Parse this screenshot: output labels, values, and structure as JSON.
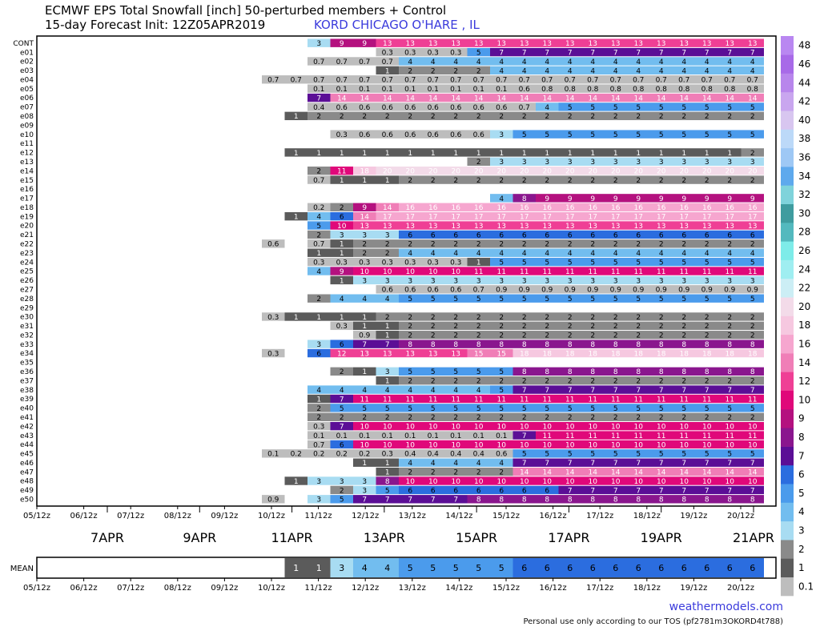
{
  "header": {
    "title_line1": "ECMWF EPS Total Snowfall [inch]  50-perturbed members + Control",
    "title_line2": "15-day Forecast Init: 12Z05APR2019",
    "station": "KORD CHICAGO O'HARE , IL"
  },
  "footer": {
    "brand": "weathermodels.com",
    "tos": "Personal use only according to our TOS (pf2781m3OKORD4t788)"
  },
  "chart_data": {
    "type": "heatmap",
    "title": "ECMWF EPS Total Snowfall [inch]  50-perturbed members + Control",
    "subtitle": "15-day Forecast Init: 12Z05APR2019",
    "x_time_labels": [
      "05/12z",
      "06/12z",
      "07/12z",
      "08/12z",
      "09/12z",
      "10/12z",
      "11/12z",
      "12/12z",
      "13/12z",
      "14/12z",
      "15/12z",
      "16/12z",
      "17/12z",
      "18/12z",
      "19/12z",
      "20/12z"
    ],
    "x_date_labels": [
      "7APR",
      "9APR",
      "11APR",
      "13APR",
      "15APR",
      "17APR",
      "19APR",
      "21APR"
    ],
    "members": [
      "CONT",
      "e01",
      "e02",
      "e03",
      "e04",
      "e05",
      "e06",
      "e07",
      "e08",
      "e09",
      "e10",
      "e11",
      "e12",
      "e13",
      "e14",
      "e15",
      "e16",
      "e17",
      "e18",
      "e19",
      "e20",
      "e21",
      "e22",
      "e23",
      "e24",
      "e25",
      "e26",
      "e27",
      "e28",
      "e29",
      "e30",
      "e31",
      "e32",
      "e33",
      "e34",
      "e35",
      "e36",
      "e37",
      "e38",
      "e39",
      "e40",
      "e41",
      "e42",
      "e43",
      "e44",
      "e45",
      "e46",
      "e47",
      "e48",
      "e49",
      "e50"
    ],
    "rows": {
      "CONT": [
        0,
        0,
        3,
        9,
        9,
        13,
        13,
        13,
        13,
        13,
        13,
        13,
        13,
        13,
        13,
        13,
        13,
        13,
        13,
        13,
        13,
        13
      ],
      "e01": [
        0,
        0,
        0,
        0,
        0,
        0.3,
        0.3,
        0.3,
        0.3,
        5,
        7,
        7,
        7,
        7,
        7,
        7,
        7,
        7,
        7,
        7,
        7,
        7
      ],
      "e02": [
        0,
        0,
        0.7,
        0.7,
        0.7,
        0.7,
        4,
        4,
        4,
        4,
        4,
        4,
        4,
        4,
        4,
        4,
        4,
        4,
        4,
        4,
        4,
        4
      ],
      "e03": [
        0,
        0,
        0,
        0,
        0,
        1,
        2,
        2,
        2,
        2,
        4,
        4,
        4,
        4,
        4,
        4,
        4,
        4,
        4,
        4,
        4,
        4
      ],
      "e04": [
        0.7,
        0.7,
        0.7,
        0.7,
        0.7,
        0.7,
        0.7,
        0.7,
        0.7,
        0.7,
        0.7,
        0.7,
        0.7,
        0.7,
        0.7,
        0.7,
        0.7,
        0.7,
        0.7,
        0.7,
        0.7,
        0.7
      ],
      "e05": [
        0,
        0,
        0.1,
        0.1,
        0.1,
        0.1,
        0.1,
        0.1,
        0.1,
        0.1,
        0.1,
        0.6,
        0.8,
        0.8,
        0.8,
        0.8,
        0.8,
        0.8,
        0.8,
        0.8,
        0.8,
        0.8
      ],
      "e06": [
        0,
        0,
        7,
        14,
        14,
        14,
        14,
        14,
        14,
        14,
        14,
        14,
        14,
        14,
        14,
        14,
        14,
        14,
        14,
        14,
        14,
        14
      ],
      "e07": [
        0,
        0,
        0.4,
        0.6,
        0.6,
        0.6,
        0.6,
        0.6,
        0.6,
        0.6,
        0.6,
        0.7,
        4,
        5,
        5,
        5,
        5,
        5,
        5,
        5,
        5,
        5
      ],
      "e08": [
        0,
        1,
        2,
        2,
        2,
        2,
        2,
        2,
        2,
        2,
        2,
        2,
        2,
        2,
        2,
        2,
        2,
        2,
        2,
        2,
        2,
        2
      ],
      "e09": [
        0,
        0,
        0,
        0,
        0,
        0,
        0,
        0,
        0,
        0,
        0,
        0,
        0,
        0,
        0,
        0,
        0,
        0,
        0,
        0,
        0,
        0
      ],
      "e10": [
        0,
        0,
        0,
        0.3,
        0.6,
        0.6,
        0.6,
        0.6,
        0.6,
        0.6,
        3,
        5,
        5,
        5,
        5,
        5,
        5,
        5,
        5,
        5,
        5,
        5
      ],
      "e11": [
        0,
        0,
        0,
        0,
        0,
        0,
        0,
        0,
        0,
        0,
        0,
        0,
        0,
        0,
        0,
        0,
        0,
        0,
        0,
        0,
        0,
        0
      ],
      "e12": [
        0,
        1,
        1,
        1,
        1,
        1,
        1,
        1,
        1,
        1,
        1,
        1,
        1,
        1,
        1,
        1,
        1,
        1,
        1,
        1,
        1,
        2
      ],
      "e13": [
        0,
        0,
        0,
        0,
        0,
        0,
        0,
        0,
        0,
        2,
        3,
        3,
        3,
        3,
        3,
        3,
        3,
        3,
        3,
        3,
        3,
        3
      ],
      "e14": [
        0,
        0,
        2,
        11,
        18,
        20,
        20,
        20,
        20,
        20,
        20,
        20,
        20,
        20,
        20,
        20,
        20,
        20,
        20,
        20,
        20,
        20
      ],
      "e15": [
        0,
        0,
        0.7,
        1,
        1,
        1,
        2,
        2,
        2,
        2,
        2,
        2,
        2,
        2,
        2,
        2,
        2,
        2,
        2,
        2,
        2,
        2
      ],
      "e16": [
        0,
        0,
        0,
        0,
        0,
        0,
        0,
        0,
        0,
        0,
        0,
        0,
        0,
        0,
        0,
        0,
        0,
        0,
        0,
        0,
        0,
        0
      ],
      "e17": [
        0,
        0,
        0,
        0,
        0,
        0,
        0,
        0,
        0,
        0,
        4,
        8,
        9,
        9,
        9,
        9,
        9,
        9,
        9,
        9,
        9,
        9
      ],
      "e18": [
        0,
        0,
        0.2,
        2,
        9,
        14,
        16,
        16,
        16,
        16,
        16,
        16,
        16,
        16,
        16,
        16,
        16,
        16,
        16,
        16,
        16,
        16
      ],
      "e19": [
        0,
        1,
        4,
        6,
        14,
        17,
        17,
        17,
        17,
        17,
        17,
        17,
        17,
        17,
        17,
        17,
        17,
        17,
        17,
        17,
        17,
        17
      ],
      "e20": [
        0,
        0,
        5,
        10,
        13,
        13,
        13,
        13,
        13,
        13,
        13,
        13,
        13,
        13,
        13,
        13,
        13,
        13,
        13,
        13,
        13,
        13
      ],
      "e21": [
        0,
        0,
        2,
        3,
        3,
        3,
        6,
        6,
        6,
        6,
        6,
        6,
        6,
        6,
        6,
        6,
        6,
        6,
        6,
        6,
        6,
        6
      ],
      "e22": [
        0.6,
        0,
        0.7,
        1,
        2,
        2,
        2,
        2,
        2,
        2,
        2,
        2,
        2,
        2,
        2,
        2,
        2,
        2,
        2,
        2,
        2,
        2
      ],
      "e23": [
        0,
        0,
        1,
        1,
        2,
        2,
        4,
        4,
        4,
        4,
        4,
        4,
        4,
        4,
        4,
        4,
        4,
        4,
        4,
        4,
        4,
        4
      ],
      "e24": [
        0,
        0,
        0.3,
        0.3,
        0.3,
        0.3,
        0.3,
        0.3,
        0.3,
        1,
        5,
        5,
        5,
        5,
        5,
        5,
        5,
        5,
        5,
        5,
        5,
        5
      ],
      "e25": [
        0,
        0,
        4,
        9,
        10,
        10,
        10,
        10,
        10,
        11,
        11,
        11,
        11,
        11,
        11,
        11,
        11,
        11,
        11,
        11,
        11,
        11
      ],
      "e26": [
        0,
        0,
        0,
        1,
        3,
        3,
        3,
        3,
        3,
        3,
        3,
        3,
        3,
        3,
        3,
        3,
        3,
        3,
        3,
        3,
        3,
        3
      ],
      "e27": [
        0,
        0,
        0,
        0,
        0,
        0.6,
        0.6,
        0.6,
        0.6,
        0.7,
        0.9,
        0.9,
        0.9,
        0.9,
        0.9,
        0.9,
        0.9,
        0.9,
        0.9,
        0.9,
        0.9,
        0.9
      ],
      "e28": [
        0,
        0,
        2,
        4,
        4,
        4,
        5,
        5,
        5,
        5,
        5,
        5,
        5,
        5,
        5,
        5,
        5,
        5,
        5,
        5,
        5,
        5
      ],
      "e29": [
        0,
        0,
        0,
        0,
        0,
        0,
        0,
        0,
        0,
        0,
        0,
        0,
        0,
        0,
        0,
        0,
        0,
        0,
        0,
        0,
        0,
        0
      ],
      "e30": [
        0.3,
        1,
        1,
        1,
        1,
        2,
        2,
        2,
        2,
        2,
        2,
        2,
        2,
        2,
        2,
        2,
        2,
        2,
        2,
        2,
        2,
        2
      ],
      "e31": [
        0,
        0,
        0,
        0.3,
        1,
        1,
        2,
        2,
        2,
        2,
        2,
        2,
        2,
        2,
        2,
        2,
        2,
        2,
        2,
        2,
        2,
        2
      ],
      "e32": [
        0,
        0,
        0,
        0,
        0.9,
        1,
        2,
        2,
        2,
        2,
        2,
        2,
        2,
        2,
        2,
        2,
        2,
        2,
        2,
        2,
        2,
        2
      ],
      "e33": [
        0,
        0,
        3,
        6,
        7,
        7,
        8,
        8,
        8,
        8,
        8,
        8,
        8,
        8,
        8,
        8,
        8,
        8,
        8,
        8,
        8,
        8
      ],
      "e34": [
        0.3,
        0,
        6,
        12,
        13,
        13,
        13,
        13,
        13,
        15,
        15,
        18,
        18,
        18,
        18,
        18,
        18,
        18,
        18,
        18,
        18,
        18
      ],
      "e35": [
        0,
        0,
        0,
        0,
        0,
        0,
        0,
        0,
        0,
        0,
        0,
        0,
        0,
        0,
        0,
        0,
        0,
        0,
        0,
        0,
        0,
        0
      ],
      "e36": [
        0,
        0,
        0,
        2,
        1,
        3,
        5,
        5,
        5,
        5,
        5,
        8,
        8,
        8,
        8,
        8,
        8,
        8,
        8,
        8,
        8,
        8
      ],
      "e37": [
        0,
        0,
        0,
        0,
        0,
        1,
        2,
        2,
        2,
        2,
        2,
        2,
        2,
        2,
        2,
        2,
        2,
        2,
        2,
        2,
        2,
        2
      ],
      "e38": [
        0,
        0,
        4,
        4,
        4,
        4,
        4,
        4,
        4,
        4,
        5,
        7,
        7,
        7,
        7,
        7,
        7,
        7,
        7,
        7,
        7,
        7
      ],
      "e39": [
        0,
        0,
        1,
        7,
        11,
        11,
        11,
        11,
        11,
        11,
        11,
        11,
        11,
        11,
        11,
        11,
        11,
        11,
        11,
        11,
        11,
        11
      ],
      "e40": [
        0,
        0,
        2,
        5,
        5,
        5,
        5,
        5,
        5,
        5,
        5,
        5,
        5,
        5,
        5,
        5,
        5,
        5,
        5,
        5,
        5,
        5
      ],
      "e41": [
        0,
        0,
        2,
        2,
        2,
        2,
        2,
        2,
        2,
        2,
        2,
        2,
        2,
        2,
        2,
        2,
        2,
        2,
        2,
        2,
        2,
        2
      ],
      "e42": [
        0,
        0,
        0.3,
        7,
        10,
        10,
        10,
        10,
        10,
        10,
        10,
        10,
        10,
        10,
        10,
        10,
        10,
        10,
        10,
        10,
        10,
        10
      ],
      "e43": [
        0,
        0,
        0.1,
        0.1,
        0.1,
        0.1,
        0.1,
        0.1,
        0.1,
        0.1,
        0.1,
        7,
        11,
        11,
        11,
        11,
        11,
        11,
        11,
        11,
        11,
        11
      ],
      "e44": [
        0,
        0,
        0.7,
        6,
        10,
        10,
        10,
        10,
        10,
        10,
        10,
        10,
        10,
        10,
        10,
        10,
        10,
        10,
        10,
        10,
        10,
        10
      ],
      "e45": [
        0.1,
        0.2,
        0.2,
        0.2,
        0.2,
        0.3,
        0.4,
        0.4,
        0.4,
        0.4,
        0.6,
        5,
        5,
        5,
        5,
        5,
        5,
        5,
        5,
        5,
        5,
        5
      ],
      "e46": [
        0,
        0,
        0,
        0,
        1,
        1,
        4,
        4,
        4,
        4,
        4,
        7,
        7,
        7,
        7,
        7,
        7,
        7,
        7,
        7,
        7,
        7
      ],
      "e47": [
        0,
        0,
        0,
        0,
        0,
        1,
        2,
        2,
        2,
        2,
        2,
        14,
        14,
        14,
        14,
        14,
        14,
        14,
        14,
        14,
        14,
        14
      ],
      "e48": [
        0,
        1,
        3,
        3,
        3,
        8,
        10,
        10,
        10,
        10,
        10,
        10,
        10,
        10,
        10,
        10,
        10,
        10,
        10,
        10,
        10,
        10
      ],
      "e49": [
        0,
        0,
        0,
        2,
        3,
        5,
        6,
        6,
        6,
        6,
        6,
        6,
        6,
        7,
        7,
        7,
        7,
        7,
        7,
        7,
        7,
        7
      ],
      "e50": [
        0.9,
        0,
        3,
        5,
        7,
        7,
        7,
        7,
        7,
        8,
        8,
        8,
        8,
        8,
        8,
        8,
        8,
        8,
        8,
        8,
        8,
        8
      ]
    },
    "mean": [
      0,
      1,
      1,
      3,
      4,
      4,
      5,
      5,
      5,
      5,
      5,
      6,
      6,
      6,
      6,
      6,
      6,
      6,
      6,
      6,
      6,
      6
    ],
    "mean_label": "MEAN",
    "colorbar": {
      "labels": [
        "0.1",
        "1",
        "2",
        "3",
        "4",
        "5",
        "6",
        "7",
        "8",
        "9",
        "10",
        "12",
        "14",
        "16",
        "18",
        "20",
        "22",
        "24",
        "26",
        "28",
        "30",
        "32",
        "34",
        "36",
        "38",
        "40",
        "42",
        "44",
        "46",
        "48"
      ],
      "colors": [
        "#bdbdbd",
        "#5b5b5b",
        "#8a8a8a",
        "#a8dcf2",
        "#72bdef",
        "#4b9bec",
        "#2b6ddf",
        "#5b0e96",
        "#8a168e",
        "#b4117f",
        "#e0087a",
        "#ef3f95",
        "#f07eb7",
        "#f6a6cf",
        "#f6c8e0",
        "#f3dbe9",
        "#cceef5",
        "#9feef1",
        "#7eece9",
        "#53b9be",
        "#3f9c9f",
        "#7fd3db",
        "#5ea9ed",
        "#9ec8f5",
        "#bcd9f8",
        "#d8c6f0",
        "#c9a6ef",
        "#b886ec",
        "#a86ae8",
        "#b987f1"
      ]
    }
  }
}
